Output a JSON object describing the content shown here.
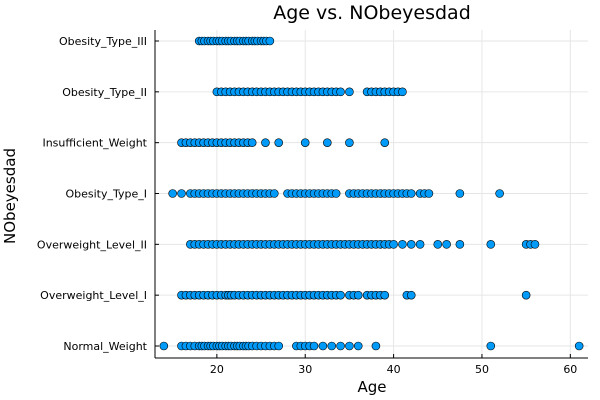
{
  "chart_data": {
    "type": "scatter",
    "title": "Age vs. NObeyesdad",
    "xlabel": "Age",
    "ylabel": "NObeyesdad",
    "xlim": [
      13,
      62
    ],
    "xticks": [
      20,
      30,
      40,
      50,
      60
    ],
    "grid": true,
    "legend": "none",
    "marker_color": "#009af9",
    "categories": [
      "Normal_Weight",
      "Overweight_Level_I",
      "Overweight_Level_II",
      "Obesity_Type_I",
      "Insufficient_Weight",
      "Obesity_Type_II",
      "Obesity_Type_III"
    ],
    "series": [
      {
        "category": "Normal_Weight",
        "ages": [
          14,
          16,
          16.5,
          17,
          17.5,
          18,
          18.3,
          18.6,
          19,
          19.3,
          19.6,
          20,
          20.3,
          20.6,
          21,
          21.3,
          21.6,
          22,
          22.3,
          22.6,
          23,
          23.3,
          23.6,
          24,
          24.5,
          25,
          25.5,
          26,
          26.5,
          27,
          29,
          29.5,
          30,
          30.5,
          31,
          32,
          33,
          34,
          35,
          36,
          38,
          51,
          61
        ]
      },
      {
        "category": "Overweight_Level_I",
        "ages": [
          16,
          16.5,
          17,
          17.5,
          18,
          18.5,
          19,
          19.5,
          20,
          20.5,
          21,
          21.3,
          21.6,
          22,
          22.5,
          23,
          23.5,
          24,
          24.5,
          25,
          25.5,
          26,
          26.5,
          27,
          27.5,
          28,
          28.5,
          29,
          29.5,
          30,
          30.5,
          31,
          31.5,
          32,
          32.5,
          33,
          33.5,
          34,
          35,
          35.5,
          36,
          37,
          37.5,
          38,
          38.5,
          39,
          41.5,
          42,
          55
        ]
      },
      {
        "category": "Overweight_Level_II",
        "ages": [
          17,
          17.5,
          18,
          18.5,
          19,
          19.5,
          20,
          20.5,
          21,
          21.5,
          22,
          22.5,
          23,
          23.5,
          24,
          24.5,
          25,
          25.5,
          26,
          26.5,
          27,
          27.5,
          28,
          28.5,
          29,
          29.5,
          30,
          30.5,
          31,
          31.5,
          32,
          32.5,
          33,
          33.5,
          34,
          34.5,
          35,
          35.5,
          36,
          36.5,
          37,
          37.5,
          38,
          38.5,
          39,
          39.5,
          40,
          41,
          42,
          43,
          45,
          46,
          47.5,
          51,
          55,
          55.5,
          56
        ]
      },
      {
        "category": "Obesity_Type_I",
        "ages": [
          15,
          16,
          17,
          17.5,
          18,
          18.5,
          19,
          19.5,
          20,
          20.5,
          21,
          21.5,
          22,
          22.5,
          23,
          23.5,
          24,
          24.5,
          25,
          25.5,
          26,
          26.5,
          28,
          28.5,
          29,
          29.5,
          30,
          30.5,
          31,
          31.5,
          32,
          32.5,
          33,
          33.5,
          35,
          35.5,
          36,
          36.5,
          37,
          37.5,
          38,
          38.5,
          39,
          39.5,
          40,
          40.5,
          41,
          41.5,
          42,
          43,
          43.5,
          44,
          47.5,
          52
        ]
      },
      {
        "category": "Insufficient_Weight",
        "ages": [
          16,
          16.5,
          17,
          17.5,
          18,
          18.5,
          19,
          19.5,
          20,
          20.5,
          21,
          21.5,
          22,
          22.5,
          23,
          23.5,
          24,
          25.5,
          27,
          30,
          32.5,
          35,
          39
        ]
      },
      {
        "category": "Obesity_Type_II",
        "ages": [
          20,
          20.5,
          21,
          21.5,
          22,
          22.5,
          23,
          23.5,
          24,
          24.5,
          25,
          25.5,
          26,
          26.5,
          27,
          27.5,
          28,
          28.5,
          29,
          29.5,
          30,
          30.5,
          31,
          31.5,
          32,
          32.5,
          33,
          33.5,
          34,
          35,
          37,
          37.5,
          38,
          38.5,
          39,
          39.5,
          40,
          40.5,
          41
        ]
      },
      {
        "category": "Obesity_Type_III",
        "ages": [
          18,
          18.3,
          18.6,
          19,
          19.3,
          19.6,
          20,
          20.3,
          20.6,
          21,
          21.3,
          21.6,
          22,
          22.3,
          22.6,
          23,
          23.3,
          23.6,
          24,
          24.3,
          24.6,
          25,
          25.3,
          25.6,
          26
        ]
      }
    ]
  }
}
